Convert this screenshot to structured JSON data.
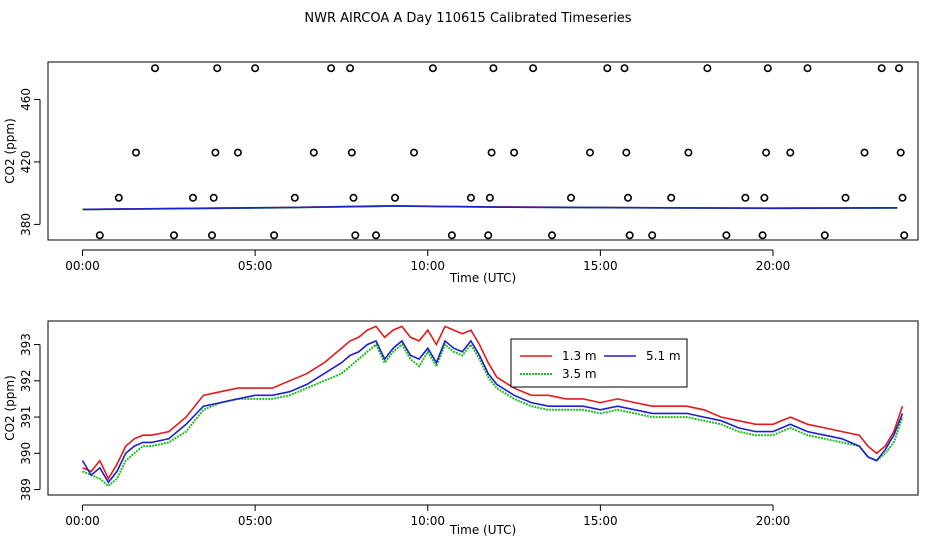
{
  "title": "NWR AIRCOA A  Day 110615  Calibrated Timeseries",
  "chart_data": [
    {
      "type": "scatter",
      "name": "calibration-flags",
      "xlabel": "Time (UTC)",
      "ylabel": "CO2 (ppm)",
      "xlim": [
        -1.0,
        24.2
      ],
      "ylim": [
        370.0,
        484.0
      ],
      "x_ticks": [
        0,
        5,
        10,
        15,
        20
      ],
      "x_tick_labels": [
        "00:00",
        "05:00",
        "10:00",
        "15:00",
        "20:00"
      ],
      "y_ticks": [
        380,
        420,
        460
      ],
      "y_tick_labels": [
        "380",
        "420",
        "460"
      ],
      "points": [
        [
          0.5,
          373
        ],
        [
          1.05,
          397
        ],
        [
          1.55,
          426
        ],
        [
          2.1,
          480
        ],
        [
          2.65,
          373
        ],
        [
          3.2,
          397
        ],
        [
          3.75,
          373
        ],
        [
          3.8,
          397
        ],
        [
          3.85,
          426
        ],
        [
          3.9,
          480
        ],
        [
          4.5,
          426
        ],
        [
          5.0,
          480
        ],
        [
          5.55,
          373
        ],
        [
          6.15,
          397
        ],
        [
          6.7,
          426
        ],
        [
          7.2,
          480
        ],
        [
          7.75,
          480
        ],
        [
          7.8,
          426
        ],
        [
          7.85,
          397
        ],
        [
          7.9,
          373
        ],
        [
          8.5,
          373
        ],
        [
          9.05,
          397
        ],
        [
          9.6,
          426
        ],
        [
          10.15,
          480
        ],
        [
          10.7,
          373
        ],
        [
          11.25,
          397
        ],
        [
          11.75,
          373
        ],
        [
          11.8,
          397
        ],
        [
          11.85,
          426
        ],
        [
          11.9,
          480
        ],
        [
          12.5,
          426
        ],
        [
          13.05,
          480
        ],
        [
          13.6,
          373
        ],
        [
          14.15,
          397
        ],
        [
          14.7,
          426
        ],
        [
          15.2,
          480
        ],
        [
          15.7,
          480
        ],
        [
          15.75,
          426
        ],
        [
          15.8,
          397
        ],
        [
          15.85,
          373
        ],
        [
          16.5,
          373
        ],
        [
          17.05,
          397
        ],
        [
          17.55,
          426
        ],
        [
          18.1,
          480
        ],
        [
          18.65,
          373
        ],
        [
          19.2,
          397
        ],
        [
          19.7,
          373
        ],
        [
          19.75,
          397
        ],
        [
          19.8,
          426
        ],
        [
          19.85,
          480
        ],
        [
          20.5,
          426
        ],
        [
          21.0,
          480
        ],
        [
          21.5,
          373
        ],
        [
          22.1,
          397
        ],
        [
          22.65,
          426
        ],
        [
          23.15,
          480
        ],
        [
          23.65,
          480
        ],
        [
          23.7,
          426
        ],
        [
          23.75,
          397
        ],
        [
          23.8,
          373
        ]
      ],
      "series": [
        {
          "name": "1.3 m",
          "color": "#e41a1c",
          "x": [
            0,
            6,
            9,
            12,
            16,
            20,
            23.6
          ],
          "values": [
            389.6,
            390.9,
            391.9,
            391.2,
            390.7,
            390.4,
            390.6
          ]
        },
        {
          "name": "3.5 m",
          "color": "#1fbf1f",
          "x": [
            0,
            6,
            9,
            12,
            16,
            20,
            23.6
          ],
          "values": [
            389.5,
            390.7,
            391.7,
            391.0,
            390.6,
            390.3,
            390.5
          ]
        },
        {
          "name": "5.1 m",
          "color": "#1f1fcf",
          "x": [
            0,
            6,
            9,
            12,
            16,
            20,
            23.6
          ],
          "values": [
            389.6,
            390.8,
            391.8,
            391.1,
            390.7,
            390.3,
            390.6
          ]
        }
      ]
    },
    {
      "type": "line",
      "name": "co2-timeseries",
      "xlabel": "Time (UTC)",
      "ylabel": "CO2 (ppm)",
      "xlim": [
        -1.0,
        24.2
      ],
      "ylim": [
        388.85,
        393.65
      ],
      "x_ticks": [
        0,
        5,
        10,
        15,
        20
      ],
      "x_tick_labels": [
        "00:00",
        "05:00",
        "10:00",
        "15:00",
        "20:00"
      ],
      "y_ticks": [
        389,
        390,
        391,
        392,
        393
      ],
      "y_tick_labels": [
        "389",
        "390",
        "391",
        "392",
        "393"
      ],
      "legend": {
        "position": "top-center",
        "labels": [
          "1.3 m",
          "3.5 m",
          "5.1 m"
        ]
      },
      "x": [
        0.0,
        0.25,
        0.5,
        0.75,
        1.0,
        1.25,
        1.5,
        1.75,
        2.0,
        2.5,
        3.0,
        3.5,
        4.0,
        4.5,
        5.0,
        5.5,
        6.0,
        6.5,
        7.0,
        7.5,
        7.75,
        8.0,
        8.25,
        8.5,
        8.75,
        9.0,
        9.25,
        9.5,
        9.75,
        10.0,
        10.25,
        10.5,
        10.75,
        11.0,
        11.25,
        11.5,
        11.75,
        12.0,
        12.5,
        13.0,
        13.5,
        14.0,
        14.5,
        15.0,
        15.5,
        16.0,
        16.5,
        17.0,
        17.5,
        18.0,
        18.5,
        19.0,
        19.5,
        20.0,
        20.5,
        21.0,
        21.5,
        22.0,
        22.5,
        22.75,
        23.0,
        23.25,
        23.5,
        23.75
      ],
      "series": [
        {
          "name": "1.3 m",
          "color": "#e41a1c",
          "values": [
            389.6,
            389.5,
            389.8,
            389.3,
            389.7,
            390.2,
            390.4,
            390.5,
            390.5,
            390.6,
            391.0,
            391.6,
            391.7,
            391.8,
            391.8,
            391.8,
            392.0,
            392.2,
            392.5,
            392.9,
            393.1,
            393.2,
            393.4,
            393.5,
            393.2,
            393.4,
            393.5,
            393.2,
            393.1,
            393.4,
            393.0,
            393.5,
            393.4,
            393.3,
            393.4,
            393.0,
            392.5,
            392.1,
            391.8,
            391.6,
            391.6,
            391.5,
            391.5,
            391.4,
            391.5,
            391.4,
            391.3,
            391.3,
            391.3,
            391.2,
            391.0,
            390.9,
            390.8,
            390.8,
            391.0,
            390.8,
            390.7,
            390.6,
            390.5,
            390.2,
            390.0,
            390.2,
            390.6,
            391.3
          ]
        },
        {
          "name": "3.5 m",
          "color": "#1fbf1f",
          "values": [
            389.5,
            389.4,
            389.3,
            389.1,
            389.3,
            389.8,
            390.0,
            390.2,
            390.2,
            390.3,
            390.6,
            391.2,
            391.4,
            391.5,
            391.5,
            391.5,
            391.6,
            391.8,
            392.0,
            392.2,
            392.4,
            392.6,
            392.8,
            393.0,
            392.5,
            392.8,
            393.0,
            392.6,
            392.4,
            392.8,
            392.4,
            393.0,
            392.8,
            392.7,
            393.0,
            392.6,
            392.1,
            391.8,
            391.5,
            391.3,
            391.2,
            391.2,
            391.2,
            391.1,
            391.2,
            391.1,
            391.0,
            391.0,
            391.0,
            390.9,
            390.8,
            390.6,
            390.5,
            390.5,
            390.7,
            390.5,
            390.4,
            390.3,
            390.2,
            389.9,
            389.8,
            390.0,
            390.3,
            391.0
          ]
        },
        {
          "name": "5.1 m",
          "color": "#1f1fcf",
          "values": [
            389.8,
            389.4,
            389.6,
            389.2,
            389.5,
            390.0,
            390.2,
            390.3,
            390.3,
            390.4,
            390.8,
            391.3,
            391.4,
            391.5,
            391.6,
            391.6,
            391.7,
            391.9,
            392.2,
            392.5,
            392.7,
            392.8,
            393.0,
            393.1,
            392.6,
            392.9,
            393.1,
            392.7,
            392.6,
            392.9,
            392.5,
            393.1,
            392.9,
            392.8,
            393.1,
            392.7,
            392.2,
            391.9,
            391.6,
            391.4,
            391.3,
            391.3,
            391.3,
            391.2,
            391.3,
            391.2,
            391.1,
            391.1,
            391.1,
            391.0,
            390.9,
            390.7,
            390.6,
            390.6,
            390.8,
            390.6,
            390.5,
            390.4,
            390.2,
            389.9,
            389.8,
            390.1,
            390.5,
            391.1
          ]
        }
      ]
    }
  ]
}
